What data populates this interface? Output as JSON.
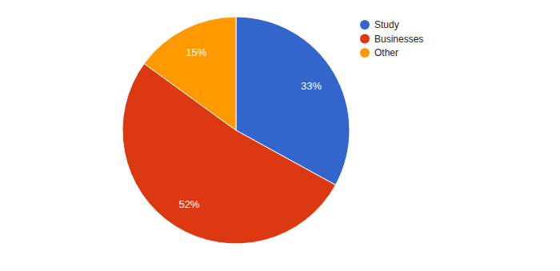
{
  "chart_data": {
    "type": "pie",
    "categories": [
      "Study",
      "Businesses",
      "Other"
    ],
    "values": [
      33,
      52,
      15
    ],
    "value_labels": [
      "33%",
      "52%",
      "15%"
    ],
    "colors": [
      "#3366cc",
      "#dc3912",
      "#ff9900"
    ],
    "data_labels": true,
    "legend": "top-right"
  }
}
